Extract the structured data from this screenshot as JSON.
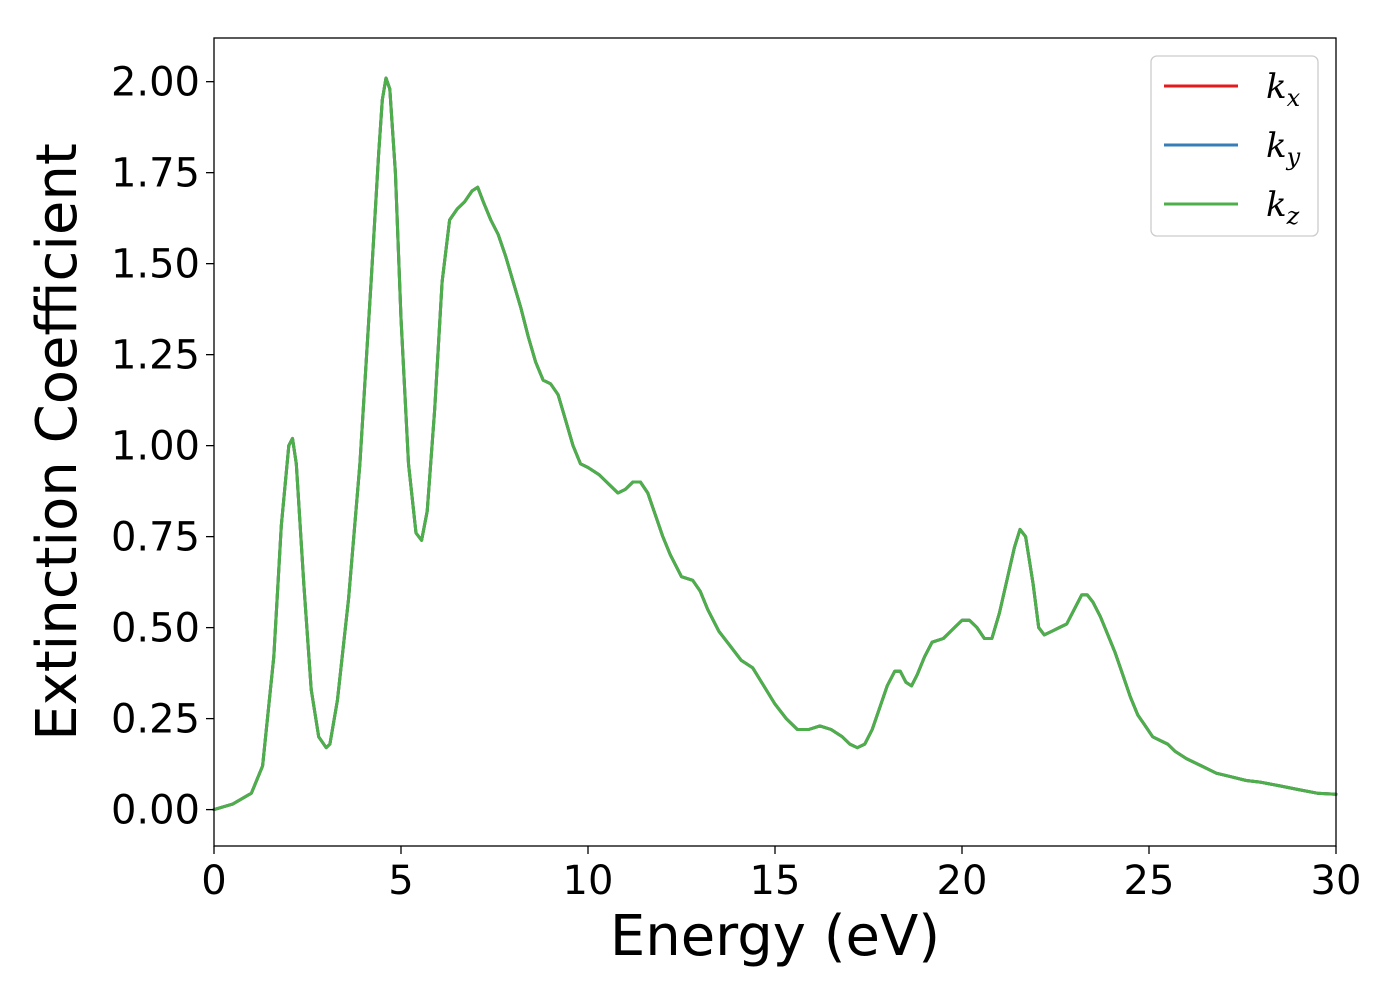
{
  "chart_data": {
    "type": "line",
    "title": "",
    "xlabel": "Energy (eV)",
    "ylabel": "Extinction Coefficient",
    "xlim": [
      0,
      30
    ],
    "ylim": [
      -0.1,
      2.12
    ],
    "xticks": [
      0,
      5,
      10,
      15,
      20,
      25,
      30
    ],
    "xtick_labels": [
      "0",
      "5",
      "10",
      "15",
      "20",
      "25",
      "30"
    ],
    "yticks": [
      0.0,
      0.25,
      0.5,
      0.75,
      1.0,
      1.25,
      1.5,
      1.75,
      2.0
    ],
    "ytick_labels": [
      "0.00",
      "0.25",
      "0.50",
      "0.75",
      "1.00",
      "1.25",
      "1.50",
      "1.75",
      "2.00"
    ],
    "grid": false,
    "legend_position": "top-right",
    "legend": [
      {
        "main": "k",
        "sub": "x",
        "color": "#e41a1c"
      },
      {
        "main": "k",
        "sub": "y",
        "color": "#377eb8"
      },
      {
        "main": "k",
        "sub": "z",
        "color": "#4daf4a"
      }
    ],
    "x": [
      0.0,
      0.5,
      1.0,
      1.3,
      1.6,
      1.8,
      2.0,
      2.1,
      2.2,
      2.4,
      2.6,
      2.8,
      3.0,
      3.1,
      3.3,
      3.6,
      3.9,
      4.2,
      4.4,
      4.5,
      4.6,
      4.7,
      4.85,
      5.0,
      5.2,
      5.4,
      5.55,
      5.7,
      5.9,
      6.1,
      6.3,
      6.5,
      6.7,
      6.9,
      7.05,
      7.2,
      7.4,
      7.6,
      7.8,
      8.0,
      8.2,
      8.4,
      8.6,
      8.8,
      9.0,
      9.2,
      9.4,
      9.6,
      9.8,
      10.0,
      10.3,
      10.6,
      10.8,
      11.0,
      11.2,
      11.4,
      11.6,
      11.8,
      12.0,
      12.2,
      12.5,
      12.8,
      13.0,
      13.2,
      13.5,
      13.8,
      14.1,
      14.4,
      14.7,
      15.0,
      15.3,
      15.6,
      15.9,
      16.2,
      16.5,
      16.8,
      17.0,
      17.2,
      17.4,
      17.6,
      17.8,
      18.0,
      18.2,
      18.35,
      18.5,
      18.65,
      18.8,
      19.0,
      19.2,
      19.5,
      19.8,
      20.0,
      20.2,
      20.4,
      20.6,
      20.8,
      21.0,
      21.2,
      21.4,
      21.55,
      21.7,
      21.9,
      22.05,
      22.2,
      22.4,
      22.6,
      22.8,
      23.0,
      23.2,
      23.35,
      23.5,
      23.7,
      23.9,
      24.1,
      24.3,
      24.5,
      24.7,
      24.9,
      25.1,
      25.3,
      25.5,
      25.7,
      26.0,
      26.4,
      26.8,
      27.2,
      27.6,
      28.0,
      28.5,
      29.0,
      29.5,
      30.0
    ],
    "series": [
      {
        "name": "k_x",
        "color": "#e41a1c",
        "values": [
          0.0,
          0.015,
          0.045,
          0.12,
          0.42,
          0.78,
          1.0,
          1.02,
          0.95,
          0.62,
          0.33,
          0.2,
          0.17,
          0.18,
          0.3,
          0.58,
          0.95,
          1.45,
          1.8,
          1.95,
          2.01,
          1.98,
          1.75,
          1.35,
          0.95,
          0.76,
          0.74,
          0.82,
          1.1,
          1.45,
          1.62,
          1.65,
          1.67,
          1.7,
          1.71,
          1.67,
          1.62,
          1.58,
          1.52,
          1.45,
          1.38,
          1.3,
          1.23,
          1.18,
          1.17,
          1.14,
          1.07,
          1.0,
          0.95,
          0.94,
          0.92,
          0.89,
          0.87,
          0.88,
          0.9,
          0.9,
          0.87,
          0.81,
          0.75,
          0.7,
          0.64,
          0.63,
          0.6,
          0.55,
          0.49,
          0.45,
          0.41,
          0.39,
          0.34,
          0.29,
          0.25,
          0.22,
          0.22,
          0.23,
          0.22,
          0.2,
          0.18,
          0.17,
          0.18,
          0.22,
          0.28,
          0.34,
          0.38,
          0.38,
          0.35,
          0.34,
          0.37,
          0.42,
          0.46,
          0.47,
          0.5,
          0.52,
          0.52,
          0.5,
          0.47,
          0.47,
          0.54,
          0.63,
          0.72,
          0.77,
          0.75,
          0.62,
          0.5,
          0.48,
          0.49,
          0.5,
          0.51,
          0.55,
          0.59,
          0.59,
          0.57,
          0.53,
          0.48,
          0.43,
          0.37,
          0.31,
          0.26,
          0.23,
          0.2,
          0.19,
          0.18,
          0.16,
          0.14,
          0.12,
          0.1,
          0.09,
          0.08,
          0.075,
          0.065,
          0.055,
          0.045,
          0.042
        ]
      },
      {
        "name": "k_y",
        "color": "#377eb8",
        "values": [
          0.0,
          0.015,
          0.045,
          0.12,
          0.42,
          0.78,
          1.0,
          1.02,
          0.95,
          0.62,
          0.33,
          0.2,
          0.17,
          0.18,
          0.3,
          0.58,
          0.95,
          1.45,
          1.8,
          1.95,
          2.01,
          1.98,
          1.75,
          1.35,
          0.95,
          0.76,
          0.74,
          0.82,
          1.1,
          1.45,
          1.62,
          1.65,
          1.67,
          1.7,
          1.71,
          1.67,
          1.62,
          1.58,
          1.52,
          1.45,
          1.38,
          1.3,
          1.23,
          1.18,
          1.17,
          1.14,
          1.07,
          1.0,
          0.95,
          0.94,
          0.92,
          0.89,
          0.87,
          0.88,
          0.9,
          0.9,
          0.87,
          0.81,
          0.75,
          0.7,
          0.64,
          0.63,
          0.6,
          0.55,
          0.49,
          0.45,
          0.41,
          0.39,
          0.34,
          0.29,
          0.25,
          0.22,
          0.22,
          0.23,
          0.22,
          0.2,
          0.18,
          0.17,
          0.18,
          0.22,
          0.28,
          0.34,
          0.38,
          0.38,
          0.35,
          0.34,
          0.37,
          0.42,
          0.46,
          0.47,
          0.5,
          0.52,
          0.52,
          0.5,
          0.47,
          0.47,
          0.54,
          0.63,
          0.72,
          0.77,
          0.75,
          0.62,
          0.5,
          0.48,
          0.49,
          0.5,
          0.51,
          0.55,
          0.59,
          0.59,
          0.57,
          0.53,
          0.48,
          0.43,
          0.37,
          0.31,
          0.26,
          0.23,
          0.2,
          0.19,
          0.18,
          0.16,
          0.14,
          0.12,
          0.1,
          0.09,
          0.08,
          0.075,
          0.065,
          0.055,
          0.045,
          0.042
        ]
      },
      {
        "name": "k_z",
        "color": "#4daf4a",
        "values": [
          0.0,
          0.015,
          0.045,
          0.12,
          0.42,
          0.78,
          1.0,
          1.02,
          0.95,
          0.62,
          0.33,
          0.2,
          0.17,
          0.18,
          0.3,
          0.58,
          0.95,
          1.45,
          1.8,
          1.95,
          2.01,
          1.98,
          1.75,
          1.35,
          0.95,
          0.76,
          0.74,
          0.82,
          1.1,
          1.45,
          1.62,
          1.65,
          1.67,
          1.7,
          1.71,
          1.67,
          1.62,
          1.58,
          1.52,
          1.45,
          1.38,
          1.3,
          1.23,
          1.18,
          1.17,
          1.14,
          1.07,
          1.0,
          0.95,
          0.94,
          0.92,
          0.89,
          0.87,
          0.88,
          0.9,
          0.9,
          0.87,
          0.81,
          0.75,
          0.7,
          0.64,
          0.63,
          0.6,
          0.55,
          0.49,
          0.45,
          0.41,
          0.39,
          0.34,
          0.29,
          0.25,
          0.22,
          0.22,
          0.23,
          0.22,
          0.2,
          0.18,
          0.17,
          0.18,
          0.22,
          0.28,
          0.34,
          0.38,
          0.38,
          0.35,
          0.34,
          0.37,
          0.42,
          0.46,
          0.47,
          0.5,
          0.52,
          0.52,
          0.5,
          0.47,
          0.47,
          0.54,
          0.63,
          0.72,
          0.77,
          0.75,
          0.62,
          0.5,
          0.48,
          0.49,
          0.5,
          0.51,
          0.55,
          0.59,
          0.59,
          0.57,
          0.53,
          0.48,
          0.43,
          0.37,
          0.31,
          0.26,
          0.23,
          0.2,
          0.19,
          0.18,
          0.16,
          0.14,
          0.12,
          0.1,
          0.09,
          0.08,
          0.075,
          0.065,
          0.055,
          0.045,
          0.042
        ]
      }
    ]
  }
}
